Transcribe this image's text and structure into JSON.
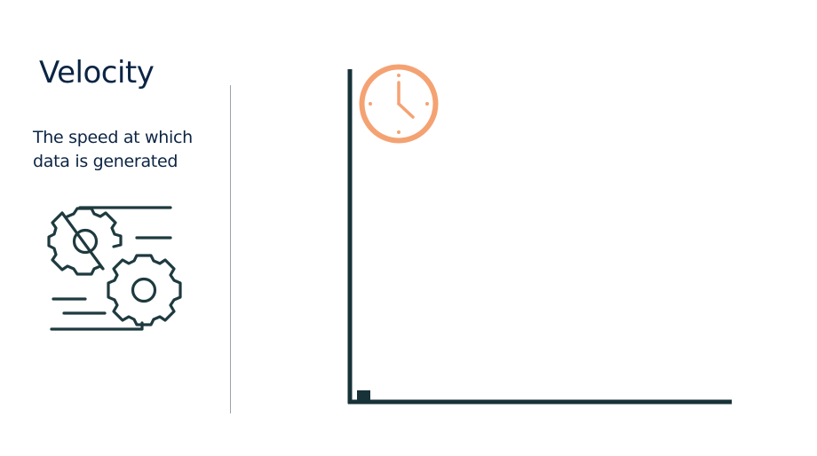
{
  "slide": {
    "title": "Velocity",
    "description": "The speed at which data is generated"
  },
  "icons": {
    "left_illustration": "spinning-gears-icon",
    "timer": "clock-icon"
  },
  "colors": {
    "text": "#0c2444",
    "line_art": "#1e3a3f",
    "axes": "#173238",
    "clock": "#f5a273",
    "divider": "#9aa3ad"
  }
}
